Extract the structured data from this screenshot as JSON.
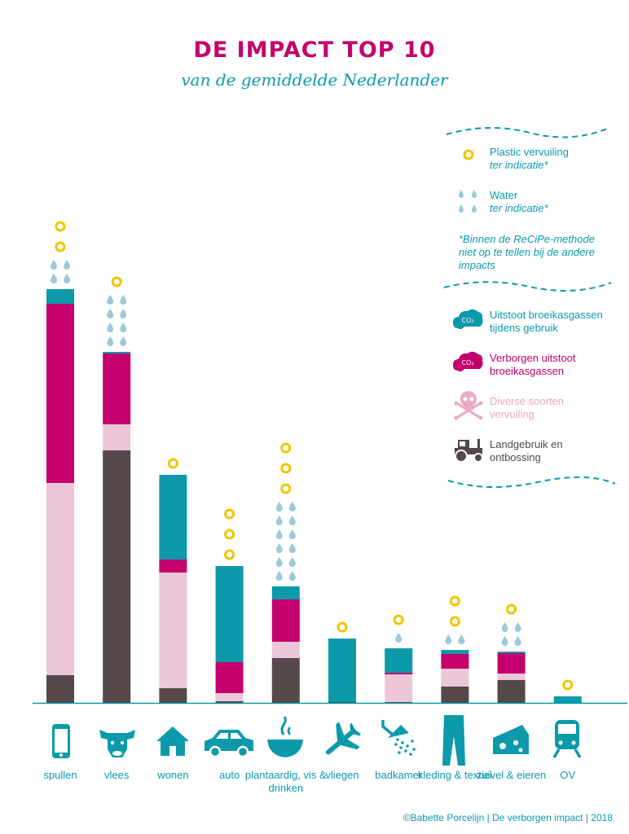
{
  "header": {
    "title": "DE IMPACT TOP 10",
    "subtitle": "van de gemiddelde Nederlander"
  },
  "legend": {
    "plastic_label": "Plastic vervuiling",
    "plastic_note": "ter indicatie*",
    "water_label": "Water",
    "water_note": "ter indicatie*",
    "footnote": "*Binnen de ReCiPe-methode niet op te tellen bij de andere impacts",
    "co2_icon_text": "CO₂",
    "items": [
      {
        "label": "Uitstoot broeikasgassen tijdens gebruik",
        "color": "#0c9aaa"
      },
      {
        "label": "Verborgen uitstoot broeikasgassen",
        "color": "#c4006d"
      },
      {
        "label": "Diverse soorten vervuiling",
        "color": "#e8aac6"
      },
      {
        "label": "Landgebruik en ontbossing",
        "color": "#544849"
      }
    ]
  },
  "colors": {
    "teal": "#0c9aaa",
    "magenta": "#c4006d",
    "pink": "#ecc7d8",
    "dark": "#544849",
    "plastic": "#f2c500",
    "water": "#9ec9d8"
  },
  "chart_data": {
    "type": "bar",
    "stacked": true,
    "categories": [
      "spullen",
      "vlees",
      "wonen",
      "auto",
      "plantaardig, vis & drinken",
      "vliegen",
      "badkamer",
      "kleding & textiel",
      "zuivel & eieren",
      "OV"
    ],
    "series": [
      {
        "name": "Landgebruik en ontbossing",
        "values": [
          34,
          310,
          18,
          2,
          55,
          1,
          1,
          20,
          28,
          0
        ]
      },
      {
        "name": "Diverse soorten vervuiling",
        "values": [
          236,
          32,
          142,
          10,
          20,
          0,
          34,
          22,
          8,
          0
        ]
      },
      {
        "name": "Verborgen uitstoot broeikasgassen",
        "values": [
          220,
          87,
          16,
          38,
          52,
          0,
          2,
          18,
          25,
          0
        ]
      },
      {
        "name": "Uitstoot broeikasgassen tijdens gebruik",
        "values": [
          18,
          2,
          104,
          118,
          16,
          78,
          30,
          5,
          2,
          8
        ]
      }
    ],
    "plastic_icons": [
      2,
      1,
      1,
      3,
      3,
      1,
      1,
      2,
      1,
      1
    ],
    "water_icons": [
      4,
      8,
      0,
      0,
      12,
      0,
      1,
      2,
      4,
      0
    ],
    "icons": [
      "smartphone-icon",
      "cow-icon",
      "house-icon",
      "car-icon",
      "bowl-icon",
      "airplane-icon",
      "shower-icon",
      "trousers-icon",
      "cheese-icon",
      "train-icon"
    ]
  },
  "credit": "©Babette Porcelijn | De verborgen impact | 2018"
}
